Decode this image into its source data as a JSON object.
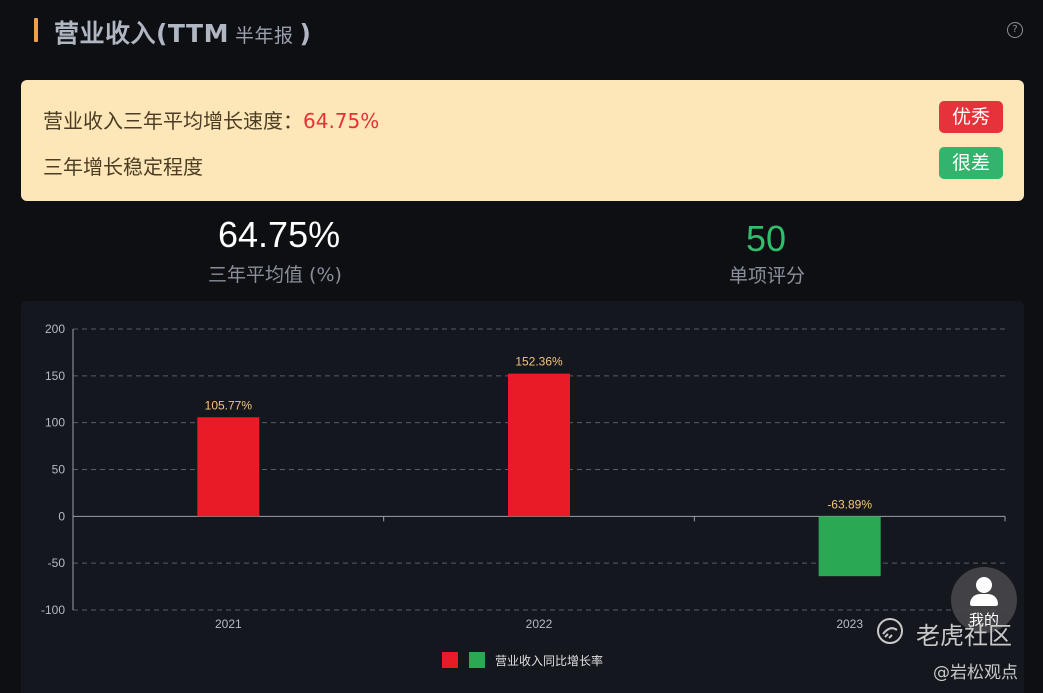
{
  "header": {
    "title_main": "营业收入(TTM",
    "title_sub": "半年报",
    "title_close": ")",
    "help_icon": "question-circle-icon"
  },
  "notice": {
    "growth_label": "营业收入三年平均增长速度：",
    "growth_value": "64.75%",
    "growth_badge": "优秀",
    "stability_label": "三年增长稳定程度",
    "stability_badge": "很差",
    "colors": {
      "background": "#fde6b7",
      "value": "#e8303a",
      "badge_good": "#e5323b",
      "badge_bad": "#33b46c"
    }
  },
  "stats": {
    "average_value": "64.75%",
    "average_label": "三年平均值 (%)",
    "score_value": "50",
    "score_label": "单项评分"
  },
  "chart_data": {
    "type": "bar",
    "categories": [
      "2021",
      "2022",
      "2023"
    ],
    "values": [
      105.77,
      152.36,
      -63.89
    ],
    "data_labels": [
      "105.77%",
      "152.36%",
      "-63.89%"
    ],
    "ylim": [
      -100,
      200
    ],
    "yticks": [
      -100,
      -50,
      0,
      50,
      100,
      150,
      200
    ],
    "grid": true,
    "legend": {
      "position": "bottom-center",
      "label": "营业收入同比增长率"
    },
    "colors": {
      "positive": "#e81b26",
      "negative": "#2ba854"
    }
  },
  "floating_button": {
    "label": "我的",
    "icon": "user-icon"
  },
  "watermark": {
    "site": "老虎社区",
    "author": "@岩松观点"
  }
}
